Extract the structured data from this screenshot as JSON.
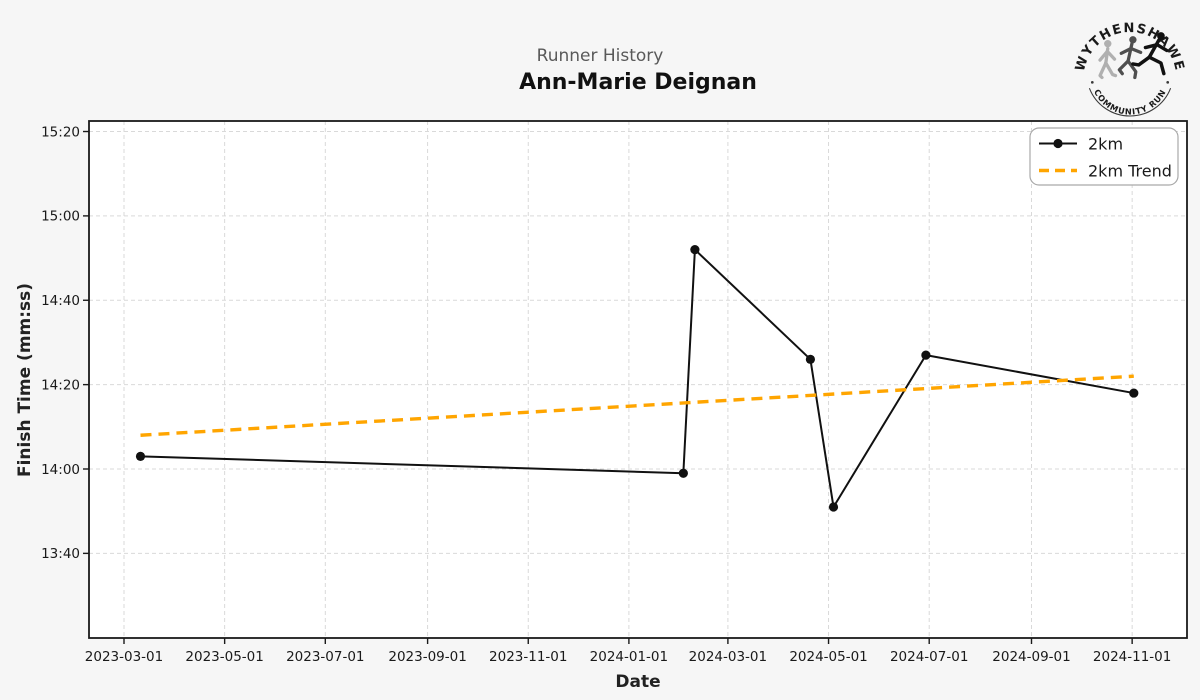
{
  "header": {
    "suptitle": "Runner History",
    "title": "Ann-Marie Deignan"
  },
  "logo": {
    "top_text": "WYTHENSHAWE",
    "bottom_text": "COMMUNITY RUN"
  },
  "chart_data": {
    "type": "line",
    "suptitle": "Runner History",
    "title": "Ann-Marie Deignan",
    "xlabel": "Date",
    "ylabel": "Finish Time (mm:ss)",
    "grid": true,
    "legend_position": "top-right",
    "x_tick_labels": [
      "2023-03-01",
      "2023-05-01",
      "2023-07-01",
      "2023-09-01",
      "2023-11-01",
      "2024-01-01",
      "2024-03-01",
      "2024-05-01",
      "2024-07-01",
      "2024-09-01",
      "2024-11-01"
    ],
    "y_tick_labels": [
      "15:20",
      "15:00",
      "14:40",
      "14:20",
      "14:00",
      "13:40"
    ],
    "colors": {
      "series": "#111111",
      "trend": "#ffa500",
      "grid": "#d9d9d9",
      "plot_background": "#ffffff",
      "figure_background": "#f6f6f6"
    },
    "series": [
      {
        "name": "2km",
        "points": [
          {
            "date": "2023-03-11",
            "time": "14:03"
          },
          {
            "date": "2024-02-03",
            "time": "13:59"
          },
          {
            "date": "2024-02-10",
            "time": "14:52"
          },
          {
            "date": "2024-04-20",
            "time": "14:26"
          },
          {
            "date": "2024-05-04",
            "time": "13:51"
          },
          {
            "date": "2024-06-29",
            "time": "14:27"
          },
          {
            "date": "2024-11-02",
            "time": "14:18"
          }
        ]
      }
    ],
    "trend": {
      "name": "2km Trend",
      "start": {
        "date": "2023-03-11",
        "time": "14:08"
      },
      "end": {
        "date": "2024-11-02",
        "time": "14:22"
      }
    }
  }
}
